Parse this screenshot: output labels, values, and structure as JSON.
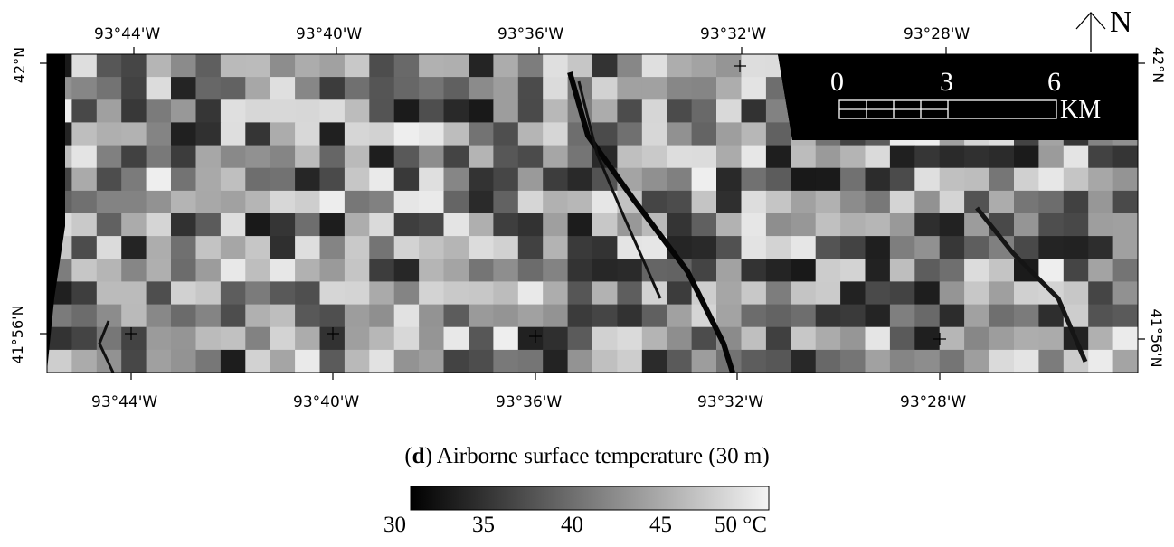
{
  "figure": {
    "panel_letter": "d",
    "caption_text": " Airborne surface temperature (30 m)"
  },
  "map": {
    "top_lon_labels": [
      "93°44'W",
      "93°40'W",
      "93°36'W",
      "93°32'W",
      "93°28'W"
    ],
    "bottom_lon_labels": [
      "93°44'W",
      "93°40'W",
      "93°36'W",
      "93°32'W",
      "93°28'W"
    ],
    "left_lat_labels": [
      "42°N",
      "41°56'N"
    ],
    "right_lat_labels": [
      "42°N",
      "41°56'N"
    ],
    "north_label": "N",
    "scale_bar": {
      "ticks": [
        "0",
        "3",
        "6"
      ],
      "unit": "KM"
    }
  },
  "colorbar": {
    "tick_labels": [
      "30",
      "35",
      "40",
      "45",
      "50 °C"
    ],
    "colors": {
      "low": "#000000",
      "high": "#f4f4f4"
    }
  }
}
